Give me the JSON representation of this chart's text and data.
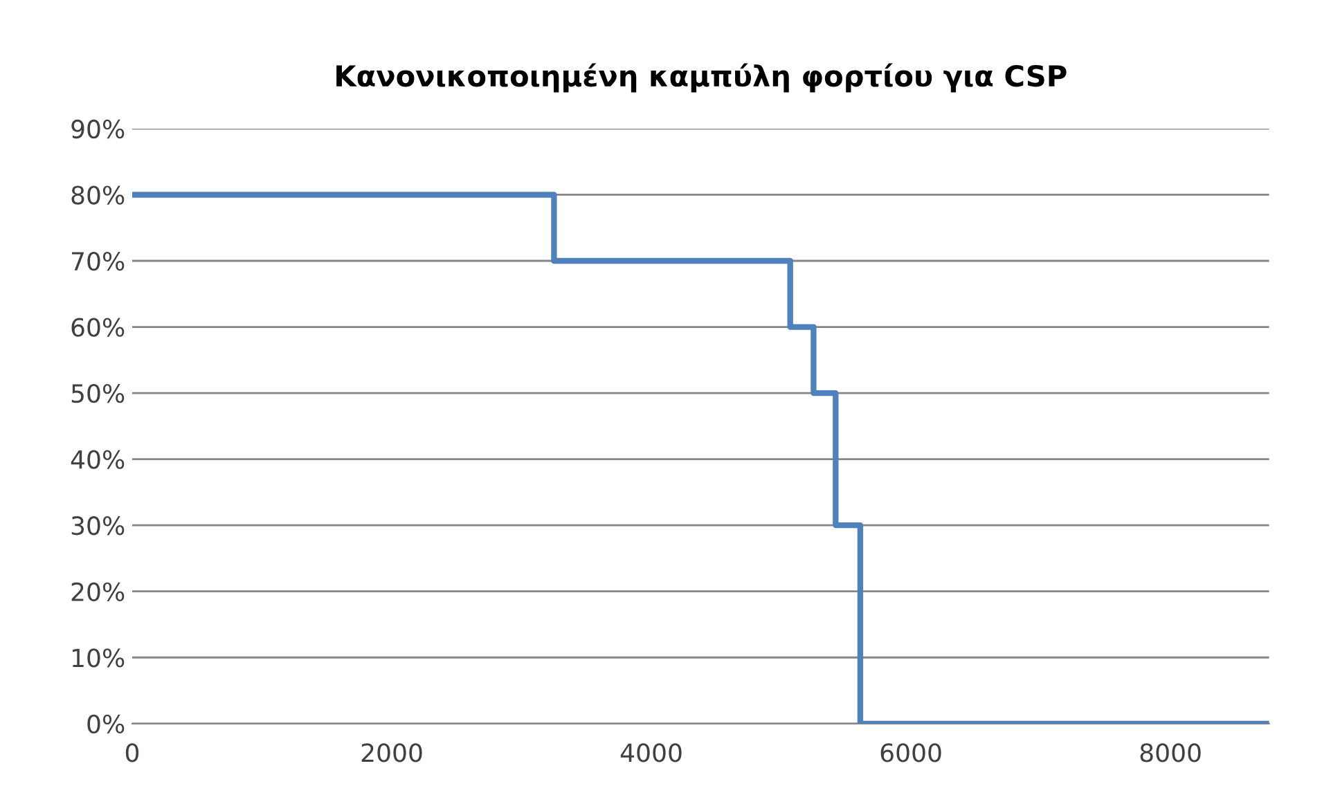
{
  "chart_data": {
    "type": "step",
    "title": "Κανονικοποιημένη καμπύλη φορτίου για CSP",
    "x": [
      0,
      3250,
      5070,
      5250,
      5420,
      5610,
      8760
    ],
    "series": [
      {
        "color": "#4f81bd",
        "values": [
          80,
          70,
          60,
          50,
          30,
          0,
          0
        ]
      }
    ],
    "xlim": [
      0,
      8760
    ],
    "xticks": [
      0,
      2000,
      4000,
      6000,
      8000
    ],
    "ylim": [
      0,
      90
    ],
    "yticks": [
      {
        "value": 0,
        "label": "0%"
      },
      {
        "value": 10,
        "label": "10%"
      },
      {
        "value": 20,
        "label": "20%"
      },
      {
        "value": 30,
        "label": "30%"
      },
      {
        "value": 40,
        "label": "40%"
      },
      {
        "value": 50,
        "label": "50%"
      },
      {
        "value": 60,
        "label": "60%"
      },
      {
        "value": 70,
        "label": "70%"
      },
      {
        "value": 80,
        "label": "80%"
      },
      {
        "value": 90,
        "label": "90%"
      }
    ],
    "grid": "y",
    "legend": false
  }
}
